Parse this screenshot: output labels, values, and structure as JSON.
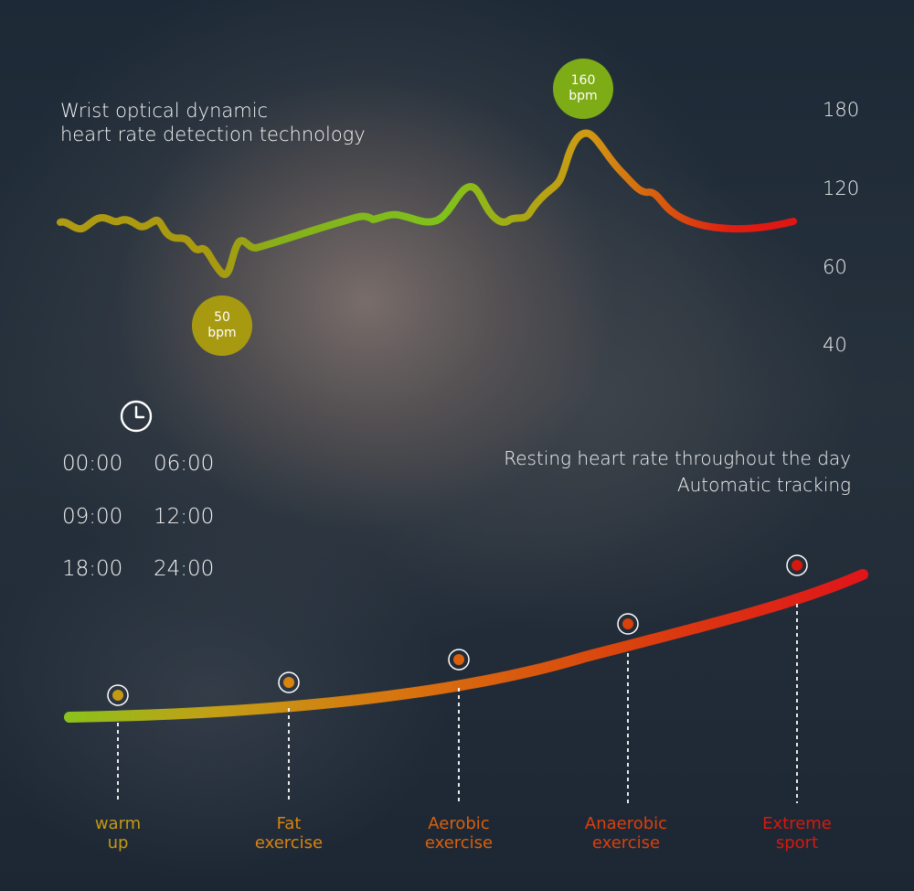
{
  "heading": {
    "line1": "Wrist optical dynamic",
    "line2": "heart rate detection technology"
  },
  "y_ticks": [
    "180",
    "120",
    "60",
    "40"
  ],
  "low_marker": {
    "value": "50",
    "unit": "bpm"
  },
  "high_marker": {
    "value": "160",
    "unit": "bpm"
  },
  "clock_icon": "clock-icon",
  "times": [
    "00:00",
    "06:00",
    "09:00",
    "12:00",
    "18:00",
    "24:00"
  ],
  "resting": {
    "line1": "Resting heart rate throughout the day",
    "line2": "Automatic tracking"
  },
  "zones": [
    {
      "line1": "warm",
      "line2": "up",
      "color": "#c49a12"
    },
    {
      "line1": "Fat",
      "line2": "exercise",
      "color": "#d8840f"
    },
    {
      "line1": "Aerobic",
      "line2": "exercise",
      "color": "#d9600c"
    },
    {
      "line1": "Anaerobic",
      "line2": "exercise",
      "color": "#d8400c"
    },
    {
      "line1": "Extreme",
      "line2": "sport",
      "color": "#d8180c"
    }
  ],
  "colors": {
    "green": "#7ec21c",
    "olive": "#a89a10",
    "red": "#e01414"
  }
}
